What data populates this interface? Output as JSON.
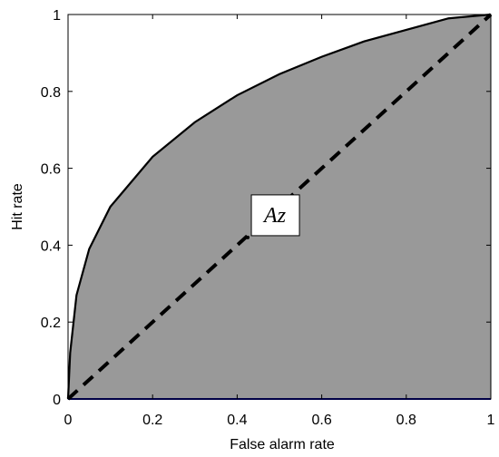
{
  "chart_data": {
    "type": "line",
    "xlabel": "False alarm rate",
    "ylabel": "Hit rate",
    "xlim": [
      0,
      1
    ],
    "ylim": [
      0,
      1
    ],
    "xticks": [
      0,
      0.2,
      0.4,
      0.6,
      0.8,
      1
    ],
    "yticks": [
      0,
      0.2,
      0.4,
      0.6,
      0.8,
      1
    ],
    "curve": {
      "color": "#000000",
      "fill": "#999999",
      "x": [
        0,
        0.005,
        0.02,
        0.05,
        0.1,
        0.2,
        0.3,
        0.4,
        0.5,
        0.6,
        0.7,
        0.8,
        0.9,
        1
      ],
      "y": [
        0,
        0.12,
        0.27,
        0.39,
        0.5,
        0.63,
        0.72,
        0.79,
        0.845,
        0.89,
        0.93,
        0.96,
        0.99,
        1
      ]
    },
    "chance_line": {
      "color": "#000000",
      "x": [
        0,
        1
      ],
      "y": [
        0,
        1
      ]
    },
    "baseline": {
      "color": "#00008b",
      "x": [
        0,
        1
      ],
      "y": [
        0,
        0
      ]
    },
    "annotation": {
      "text": "Az",
      "x": 0.425,
      "y": 0.42
    }
  }
}
